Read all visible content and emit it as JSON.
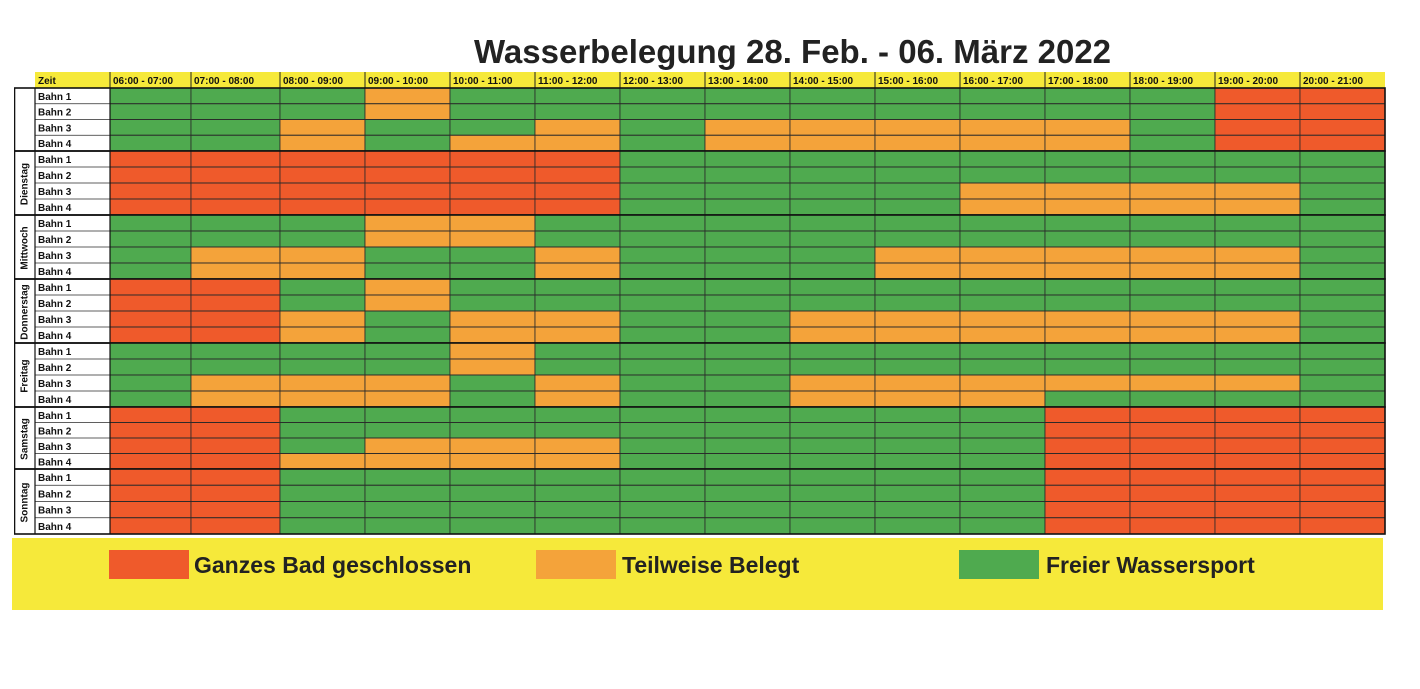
{
  "title": "Wasserbelegung 28. Feb. - 06. März 2022",
  "colors": {
    "R": "#ef5a2b",
    "O": "#f4a33a",
    "G": "#4faa4f",
    "header_bg": "#f6e93a"
  },
  "header": {
    "zeit_label": "Zeit",
    "slots": [
      "06:00 - 07:00",
      "07:00 - 08:00",
      "08:00 - 09:00",
      "09:00 - 10:00",
      "10:00 - 11:00",
      "11:00 - 12:00",
      "12:00 - 13:00",
      "13:00 - 14:00",
      "14:00 - 15:00",
      "15:00 - 16:00",
      "16:00 - 17:00",
      "17:00 - 18:00",
      "18:00 - 19:00",
      "19:00 - 20:00",
      "20:00 - 21:00"
    ]
  },
  "days": [
    {
      "name": "",
      "lanes": [
        {
          "label": "Bahn 1",
          "cells": "GGGOGGGGGGGGGRR"
        },
        {
          "label": "Bahn 2",
          "cells": "GGGOGGGGGGGGGRR"
        },
        {
          "label": "Bahn 3",
          "cells": "GGOGGOGOOOOOGRR"
        },
        {
          "label": "Bahn 4",
          "cells": "GGOGOOGOOOOOGRR"
        }
      ]
    },
    {
      "name": "Dienstag",
      "lanes": [
        {
          "label": "Bahn 1",
          "cells": "RRRRRRGGGGGGGGG"
        },
        {
          "label": "Bahn 2",
          "cells": "RRRRRRGGGGGGGGG"
        },
        {
          "label": "Bahn 3",
          "cells": "RRRRRRGGGGOOOOG"
        },
        {
          "label": "Bahn 4",
          "cells": "RRRRRRGGGGOOOOG"
        }
      ]
    },
    {
      "name": "Mittwoch",
      "lanes": [
        {
          "label": "Bahn 1",
          "cells": "GGGOOGGGGGGGGGG"
        },
        {
          "label": "Bahn 2",
          "cells": "GGGOOGGGGGGGGGG"
        },
        {
          "label": "Bahn 3",
          "cells": "GOOGGOGGGOOOOOG"
        },
        {
          "label": "Bahn 4",
          "cells": "GOOGGOGGGOOOOOG"
        }
      ]
    },
    {
      "name": "Donnerstag",
      "lanes": [
        {
          "label": "Bahn 1",
          "cells": "RRGOGGGGGGGGGGG"
        },
        {
          "label": "Bahn 2",
          "cells": "RRGOGGGGGGGGGGG"
        },
        {
          "label": "Bahn 3",
          "cells": "RROGOOGGOOOOOOG"
        },
        {
          "label": "Bahn 4",
          "cells": "RROGOOGGOOOOOOG"
        }
      ]
    },
    {
      "name": "Freitag",
      "lanes": [
        {
          "label": "Bahn 1",
          "cells": "GGGGOGGGGGGGGGG"
        },
        {
          "label": "Bahn 2",
          "cells": "GGGGOGGGGGGGGGG"
        },
        {
          "label": "Bahn 3",
          "cells": "GOOOGOGGOOOOOOG"
        },
        {
          "label": "Bahn 4",
          "cells": "GOOOGOGGOOOGGGG"
        }
      ]
    },
    {
      "name": "Samstag",
      "lanes": [
        {
          "label": "Bahn 1",
          "cells": "RRGGGGGGGGGRRRR"
        },
        {
          "label": "Bahn 2",
          "cells": "RRGGGGGGGGGRRRR"
        },
        {
          "label": "Bahn 3",
          "cells": "RRGOOOGGGGGRRRR"
        },
        {
          "label": "Bahn 4",
          "cells": "RROOOOGGGGGRRRR"
        }
      ]
    },
    {
      "name": "Sonntag",
      "lanes": [
        {
          "label": "Bahn 1",
          "cells": "RRGGGGGGGGGRRRR"
        },
        {
          "label": "Bahn 2",
          "cells": "RRGGGGGGGGGRRRR"
        },
        {
          "label": "Bahn 3",
          "cells": "RRGGGGGGGGGRRRR"
        },
        {
          "label": "Bahn 4",
          "cells": "RRGGGGGGGGGRRRR"
        }
      ]
    }
  ],
  "legend": [
    {
      "key": "R",
      "label": "Ganzes Bad geschlossen"
    },
    {
      "key": "O",
      "label": "Teilweise Belegt"
    },
    {
      "key": "G",
      "label": "Freier Wassersport"
    }
  ]
}
